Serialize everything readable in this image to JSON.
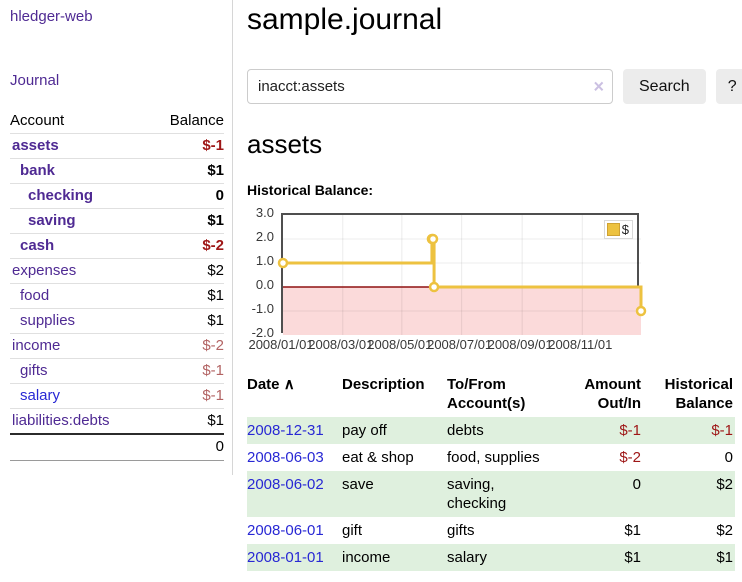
{
  "app": {
    "title": "hledger-web"
  },
  "nav": {
    "journal": "Journal"
  },
  "sidebar": {
    "header": {
      "account": "Account",
      "balance": "Balance"
    },
    "accounts": [
      {
        "name": "assets",
        "depth": 1,
        "bold": true,
        "balance": "$-1",
        "balance_style": "neg"
      },
      {
        "name": "bank",
        "depth": 2,
        "bold": true,
        "balance": "$1",
        "balance_style": "pos"
      },
      {
        "name": "checking",
        "depth": 3,
        "bold": true,
        "balance": "0",
        "balance_style": "pos"
      },
      {
        "name": "saving",
        "depth": 3,
        "bold": true,
        "balance": "$1",
        "balance_style": "pos"
      },
      {
        "name": "cash",
        "depth": 2,
        "bold": true,
        "balance": "$-2",
        "balance_style": "neg"
      },
      {
        "name": "expenses",
        "depth": 1,
        "bold": false,
        "balance": "$2",
        "balance_style": "pos"
      },
      {
        "name": "food",
        "depth": 2,
        "bold": false,
        "balance": "$1",
        "balance_style": "pos"
      },
      {
        "name": "supplies",
        "depth": 2,
        "bold": false,
        "balance": "$1",
        "balance_style": "pos"
      },
      {
        "name": "income",
        "depth": 1,
        "bold": false,
        "balance": "$-2",
        "balance_style": "neg-muted"
      },
      {
        "name": "gifts",
        "depth": 2,
        "bold": false,
        "balance": "$-1",
        "balance_style": "neg-muted"
      },
      {
        "name": "salary",
        "depth": 2,
        "bold": false,
        "balance": "$-1",
        "balance_style": "neg-muted",
        "link_style": "blue"
      },
      {
        "name": "liabilities:debts",
        "depth": 1,
        "bold": false,
        "balance": "$1",
        "balance_style": "pos"
      }
    ],
    "total": "0"
  },
  "main": {
    "title": "sample.journal",
    "account_heading": "assets",
    "chart_label": "Historical Balance:"
  },
  "search": {
    "query": "inacct:assets",
    "clear_icon": "×",
    "search_label": "Search",
    "help_label": "?"
  },
  "chart_data": {
    "type": "line",
    "style": "steps",
    "title": "Historical Balance",
    "series": [
      {
        "name": "$",
        "color": "#edc240",
        "points": [
          [
            "2008-01-01",
            1
          ],
          [
            "2008-06-01",
            2
          ],
          [
            "2008-06-02",
            2
          ],
          [
            "2008-06-03",
            0
          ],
          [
            "2008-12-31",
            -1
          ]
        ],
        "point_fractions": [
          0,
          0.416,
          0.419,
          0.422,
          1
        ]
      }
    ],
    "ylim": [
      -2,
      3
    ],
    "yticks": [
      3,
      2,
      1,
      0,
      -1,
      -2
    ],
    "ytick_labels": [
      "3.0",
      "2.0",
      "1.0",
      "0.0",
      "-1.0",
      "-2.0"
    ],
    "xticks": [
      {
        "label": "2008/01/01",
        "f": 0
      },
      {
        "label": "2008/03/01",
        "f": 0.167
      },
      {
        "label": "2008/05/01",
        "f": 0.332
      },
      {
        "label": "2008/07/01",
        "f": 0.499
      },
      {
        "label": "2008/09/01",
        "f": 0.668
      },
      {
        "label": "2008/11/01",
        "f": 0.836
      }
    ],
    "grid": true,
    "legend_position": "top-right",
    "negative_fill": "#fbdada",
    "zero_line_color": "#8f1111",
    "legend": {
      "label": "$",
      "swatch_color": "#edc240"
    }
  },
  "register": {
    "headers": {
      "date": "Date",
      "sort_icon": "∧",
      "description": "Description",
      "tofrom": "To/From Account(s)",
      "amount": "Amount Out/In",
      "balance": "Historical Balance"
    },
    "rows": [
      {
        "date": "2008-12-31",
        "description": "pay off",
        "accounts": "debts",
        "amount": "$-1",
        "amount_style": "neg",
        "balance": "$-1",
        "balance_style": "neg"
      },
      {
        "date": "2008-06-03",
        "description": "eat & shop",
        "accounts": "food, supplies",
        "amount": "$-2",
        "amount_style": "neg",
        "balance": "0",
        "balance_style": "pos"
      },
      {
        "date": "2008-06-02",
        "description": "save",
        "accounts": "saving, checking",
        "amount": "0",
        "amount_style": "pos",
        "balance": "$2",
        "balance_style": "pos"
      },
      {
        "date": "2008-06-01",
        "description": "gift",
        "accounts": "gifts",
        "amount": "$1",
        "amount_style": "pos",
        "balance": "$2",
        "balance_style": "pos"
      },
      {
        "date": "2008-01-01",
        "description": "income",
        "accounts": "salary",
        "amount": "$1",
        "amount_style": "pos",
        "balance": "$1",
        "balance_style": "pos"
      }
    ]
  }
}
